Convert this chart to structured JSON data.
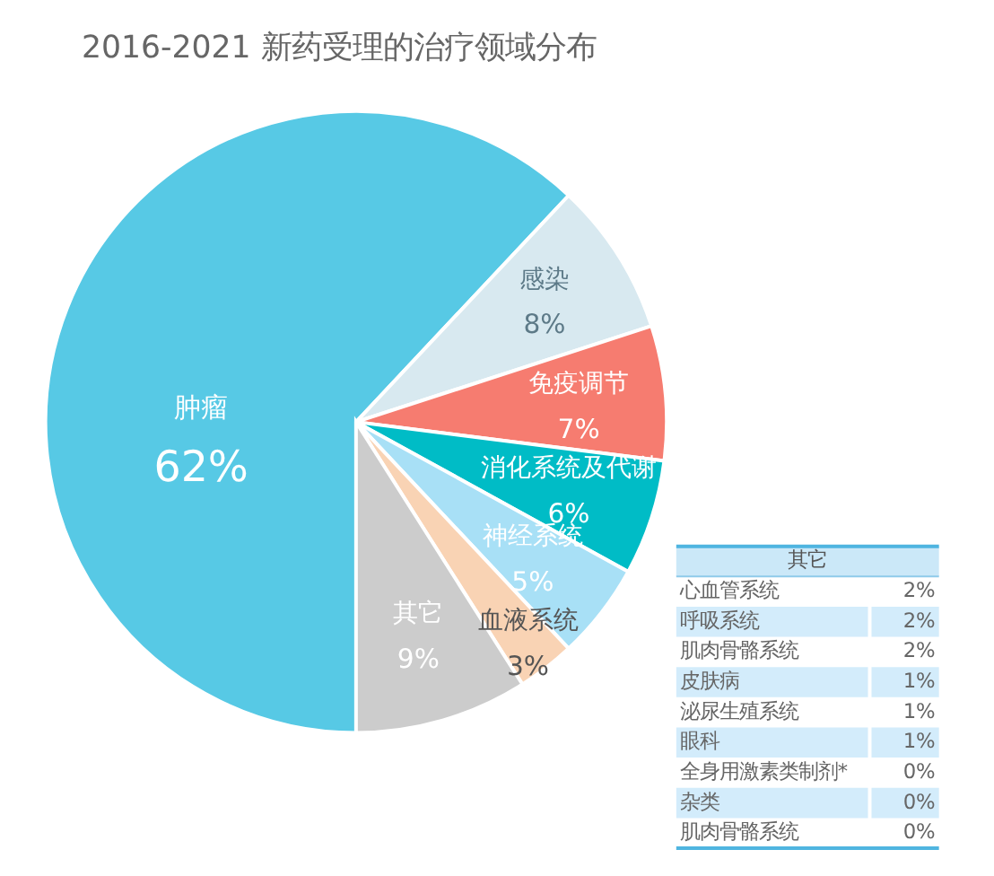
{
  "chart_data": [
    {
      "type": "pie",
      "title": "2016-2021 新药受理的治疗领域分布",
      "categories": [
        "肿瘤",
        "感染",
        "免疫调节",
        "消化系统及代谢",
        "神经系统",
        "血液系统",
        "其它"
      ],
      "values": [
        62,
        8,
        7,
        6,
        5,
        3,
        9
      ],
      "colors": [
        "#57c9e5",
        "#d8e9f0",
        "#f67c70",
        "#00bcc6",
        "#a8e0f6",
        "#f9d3b4",
        "#cccccc"
      ],
      "value_labels": [
        "62%",
        "8%",
        "7%",
        "6%",
        "5%",
        "3%",
        "9%"
      ]
    },
    {
      "type": "other",
      "title": "其它",
      "categories": [
        "心血管系统",
        "呼吸系统",
        "肌肉骨骼系统",
        "皮肤病",
        "泌尿生殖系统",
        "眼科",
        "全身用激素类制剂*",
        "杂类",
        "肌肉骨骼系统"
      ],
      "values": [
        2,
        2,
        2,
        1,
        1,
        1,
        0,
        0,
        0
      ],
      "value_labels": [
        "2%",
        "2%",
        "2%",
        "1%",
        "1%",
        "1%",
        "0%",
        "0%",
        "0%"
      ]
    }
  ]
}
